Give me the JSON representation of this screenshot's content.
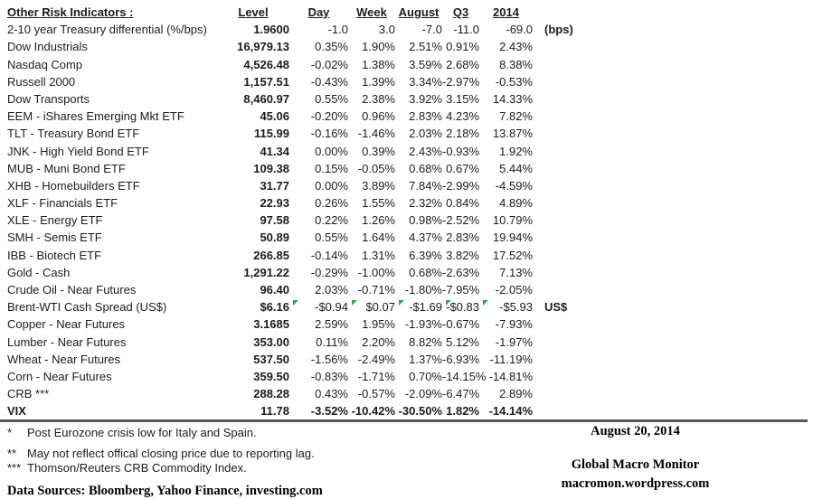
{
  "table": {
    "title": "Other Risk Indicators :",
    "headers": {
      "level": "Level",
      "day": "Day",
      "week": "Week",
      "august": "August",
      "q3": "Q3",
      "y2014": "2014"
    },
    "rows": [
      {
        "label": "2-10 year Treasury differential (%/bps)",
        "level": "1.9600",
        "day": "-1.0",
        "week": "3.0",
        "august": "-7.0",
        "q3": "-11.0",
        "y2014": "-69.0",
        "suffix": "(bps)",
        "bold": false,
        "flags": false
      },
      {
        "label": "Dow Industrials",
        "level": "16,979.13",
        "day": "0.35%",
        "week": "1.90%",
        "august": "2.51%",
        "q3": "0.91%",
        "y2014": "2.43%",
        "suffix": "",
        "bold": false,
        "flags": false
      },
      {
        "label": "Nasdaq Comp",
        "level": "4,526.48",
        "day": "-0.02%",
        "week": "1.38%",
        "august": "3.59%",
        "q3": "2.68%",
        "y2014": "8.38%",
        "suffix": "",
        "bold": false,
        "flags": false
      },
      {
        "label": "Russell 2000",
        "level": "1,157.51",
        "day": "-0.43%",
        "week": "1.39%",
        "august": "3.34%",
        "q3": "-2.97%",
        "y2014": "-0.53%",
        "suffix": "",
        "bold": false,
        "flags": false
      },
      {
        "label": "Dow Transports",
        "level": "8,460.97",
        "day": "0.55%",
        "week": "2.38%",
        "august": "3.92%",
        "q3": "3.15%",
        "y2014": "14.33%",
        "suffix": "",
        "bold": false,
        "flags": false
      },
      {
        "label": "EEM - iShares Emerging Mkt ETF",
        "level": "45.06",
        "day": "-0.20%",
        "week": "0.96%",
        "august": "2.83%",
        "q3": "4.23%",
        "y2014": "7.82%",
        "suffix": "",
        "bold": false,
        "flags": false
      },
      {
        "label": "TLT - Treasury Bond ETF",
        "level": "115.99",
        "day": "-0.16%",
        "week": "-1.46%",
        "august": "2.03%",
        "q3": "2.18%",
        "y2014": "13.87%",
        "suffix": "",
        "bold": false,
        "flags": false
      },
      {
        "label": "JNK - High Yield Bond ETF",
        "level": "41.34",
        "day": "0.00%",
        "week": "0.39%",
        "august": "2.43%",
        "q3": "-0.93%",
        "y2014": "1.92%",
        "suffix": "",
        "bold": false,
        "flags": false
      },
      {
        "label": "MUB - Muni Bond ETF",
        "level": "109.38",
        "day": "0.15%",
        "week": "-0.05%",
        "august": "0.68%",
        "q3": "0.67%",
        "y2014": "5.44%",
        "suffix": "",
        "bold": false,
        "flags": false
      },
      {
        "label": "XHB - Homebuilders ETF",
        "level": "31.77",
        "day": "0.00%",
        "week": "3.89%",
        "august": "7.84%",
        "q3": "-2.99%",
        "y2014": "-4.59%",
        "suffix": "",
        "bold": false,
        "flags": false
      },
      {
        "label": "XLF - Financials ETF",
        "level": "22.93",
        "day": "0.26%",
        "week": "1.55%",
        "august": "2.32%",
        "q3": "0.84%",
        "y2014": "4.89%",
        "suffix": "",
        "bold": false,
        "flags": false
      },
      {
        "label": "XLE - Energy ETF",
        "level": "97.58",
        "day": "0.22%",
        "week": "1.26%",
        "august": "0.98%",
        "q3": "-2.52%",
        "y2014": "10.79%",
        "suffix": "",
        "bold": false,
        "flags": false
      },
      {
        "label": "SMH - Semis ETF",
        "level": "50.89",
        "day": "0.55%",
        "week": "1.64%",
        "august": "4.37%",
        "q3": "2.83%",
        "y2014": "19.94%",
        "suffix": "",
        "bold": false,
        "flags": false
      },
      {
        "label": "IBB - Biotech ETF",
        "level": "266.85",
        "day": "-0.14%",
        "week": "1.31%",
        "august": "6.39%",
        "q3": "3.82%",
        "y2014": "17.52%",
        "suffix": "",
        "bold": false,
        "flags": false
      },
      {
        "label": "Gold - Cash",
        "level": "1,291.22",
        "day": "-0.29%",
        "week": "-1.00%",
        "august": "0.68%",
        "q3": "-2.63%",
        "y2014": "7.13%",
        "suffix": "",
        "bold": false,
        "flags": false
      },
      {
        "label": "Crude Oil - Near Futures",
        "level": "96.40",
        "day": "2.03%",
        "week": "-0.71%",
        "august": "-1.80%",
        "q3": "-7.95%",
        "y2014": "-2.05%",
        "suffix": "",
        "bold": false,
        "flags": false
      },
      {
        "label": "Brent-WTI Cash Spread (US$)",
        "level": "$6.16",
        "day": "-$0.94",
        "week": "$0.07",
        "august": "-$1.69",
        "q3": "-$0.83",
        "y2014": "-$5.93",
        "suffix": "US$",
        "bold": false,
        "flags": true
      },
      {
        "label": "Copper - Near Futures",
        "level": "3.1685",
        "day": "2.59%",
        "week": "1.95%",
        "august": "-1.93%",
        "q3": "-0.67%",
        "y2014": "-7.93%",
        "suffix": "",
        "bold": false,
        "flags": false
      },
      {
        "label": "Lumber - Near Futures",
        "level": "353.00",
        "day": "0.11%",
        "week": "2.20%",
        "august": "8.82%",
        "q3": "5.12%",
        "y2014": "-1.97%",
        "suffix": "",
        "bold": false,
        "flags": false
      },
      {
        "label": "Wheat - Near Futures",
        "level": "537.50",
        "day": "-1.56%",
        "week": "-2.49%",
        "august": "1.37%",
        "q3": "-6.93%",
        "y2014": "-11.19%",
        "suffix": "",
        "bold": false,
        "flags": false
      },
      {
        "label": "Corn - Near Futures",
        "level": "359.50",
        "day": "-0.83%",
        "week": "-1.71%",
        "august": "0.70%",
        "q3": "-14.15%",
        "y2014": "-14.81%",
        "suffix": "",
        "bold": false,
        "flags": false
      },
      {
        "label": "CRB ***",
        "level": "288.28",
        "day": "0.43%",
        "week": "-0.57%",
        "august": "-2.09%",
        "q3": "-6.47%",
        "y2014": "2.89%",
        "suffix": "",
        "bold": false,
        "flags": false
      },
      {
        "label": "VIX",
        "level": "11.78",
        "day": "-3.52%",
        "week": "-10.42%",
        "august": "-30.50%",
        "q3": "1.82%",
        "y2014": "-14.14%",
        "suffix": "",
        "bold": true,
        "flags": false
      }
    ]
  },
  "footer": {
    "footnotes": [
      {
        "mark": "*",
        "text": "Post Eurozone crisis low for Italy and Spain."
      },
      {
        "mark": "**",
        "text": "May not reflect offical closing price due to reporting lag."
      },
      {
        "mark": "***",
        "text": "Thomson/Reuters CRB Commodity Index."
      }
    ],
    "data_sources": "Data Sources:  Bloomberg,  Yahoo Finance, investing.com",
    "date": "August 20, 2014",
    "brand": "Global Macro Monitor",
    "url": "macromon.wordpress.com"
  },
  "colors": {
    "flag_green": "#2ea44f",
    "rule_gray": "#595959",
    "text": "#1c1c1c"
  }
}
